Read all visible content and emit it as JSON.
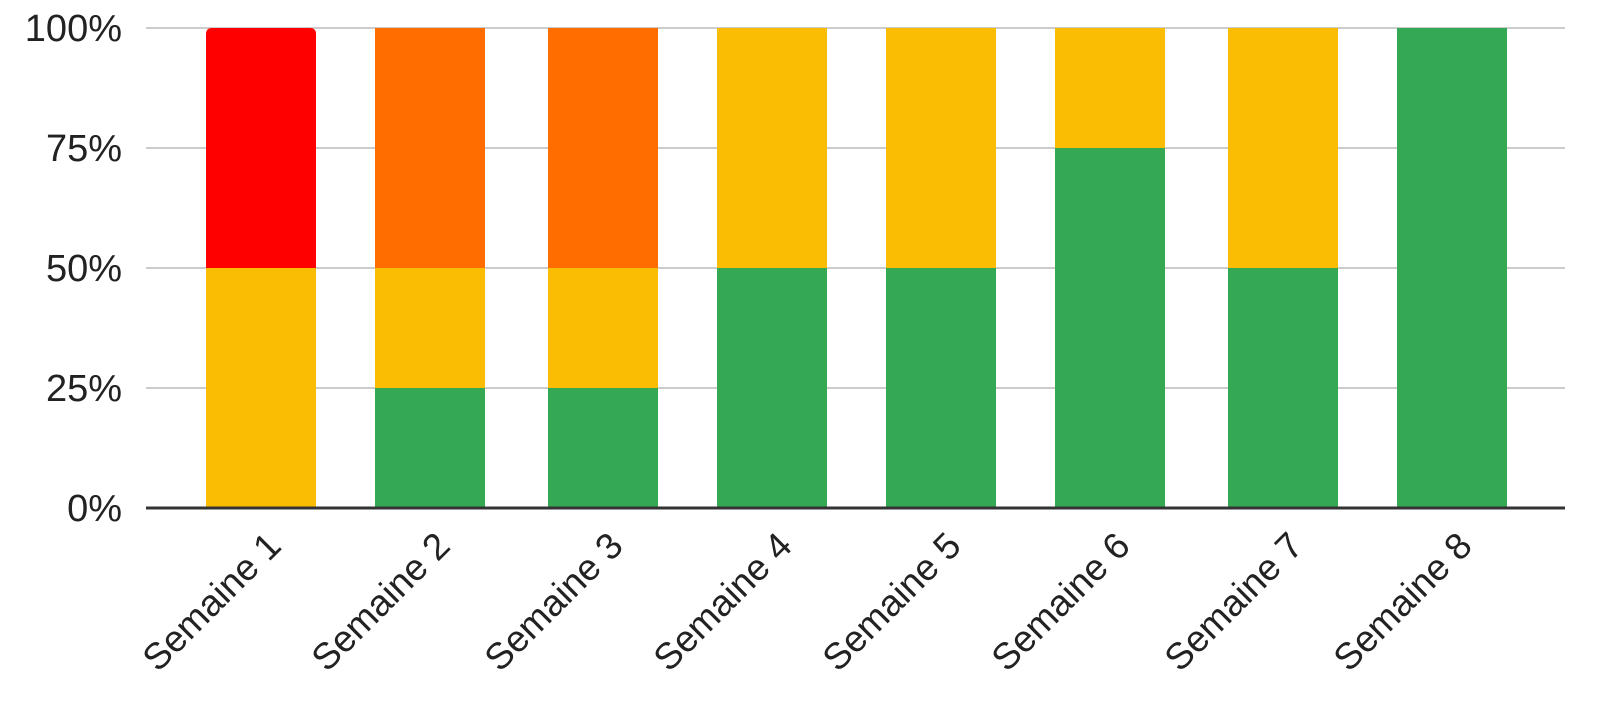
{
  "chart_data": {
    "type": "bar",
    "stacked": "percent",
    "categories": [
      "Semaine 1",
      "Semaine 2",
      "Semaine 3",
      "Semaine 4",
      "Semaine 5",
      "Semaine 6",
      "Semaine 7",
      "Semaine 8"
    ],
    "series": [
      {
        "color": "#34a853",
        "values": [
          0,
          25,
          25,
          50,
          50,
          75,
          50,
          100
        ]
      },
      {
        "color": "#fbbc04",
        "values": [
          50,
          25,
          25,
          50,
          50,
          25,
          50,
          0
        ]
      },
      {
        "color": "#ff6d01",
        "values": [
          0,
          50,
          50,
          0,
          0,
          0,
          0,
          0
        ]
      },
      {
        "color": "#ff0000",
        "values": [
          50,
          0,
          0,
          0,
          0,
          0,
          0,
          0
        ]
      }
    ],
    "yticks": [
      "0%",
      "25%",
      "50%",
      "75%",
      "100%"
    ],
    "ylim": [
      0,
      100
    ],
    "grid": true,
    "legend": "none",
    "title": "",
    "xlabel": "",
    "ylabel": ""
  }
}
